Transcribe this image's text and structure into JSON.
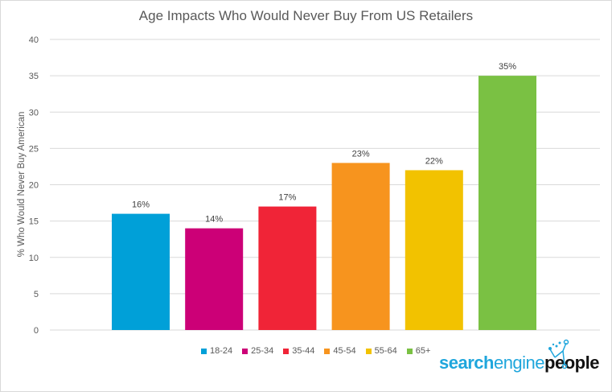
{
  "chart_data": {
    "type": "bar",
    "title": "Age Impacts Who Would Never Buy From US Retailers",
    "xlabel": "",
    "ylabel": "% Who Would Never Buy American",
    "ylim": [
      0,
      40
    ],
    "yticks": [
      0,
      5,
      10,
      15,
      20,
      25,
      30,
      35,
      40
    ],
    "grid": true,
    "legend_position": "bottom",
    "categories": [
      "18-24",
      "25-34",
      "35-44",
      "45-54",
      "55-64",
      "65+"
    ],
    "values": [
      16,
      14,
      17,
      23,
      22,
      35
    ],
    "data_labels": [
      "16%",
      "14%",
      "17%",
      "23%",
      "22%",
      "35%"
    ],
    "colors": [
      "#00a0d8",
      "#cc0077",
      "#f02437",
      "#f7941e",
      "#f2c200",
      "#7ac143"
    ]
  },
  "logo": {
    "part1": "search",
    "part2": "engine",
    "part3": "people"
  }
}
